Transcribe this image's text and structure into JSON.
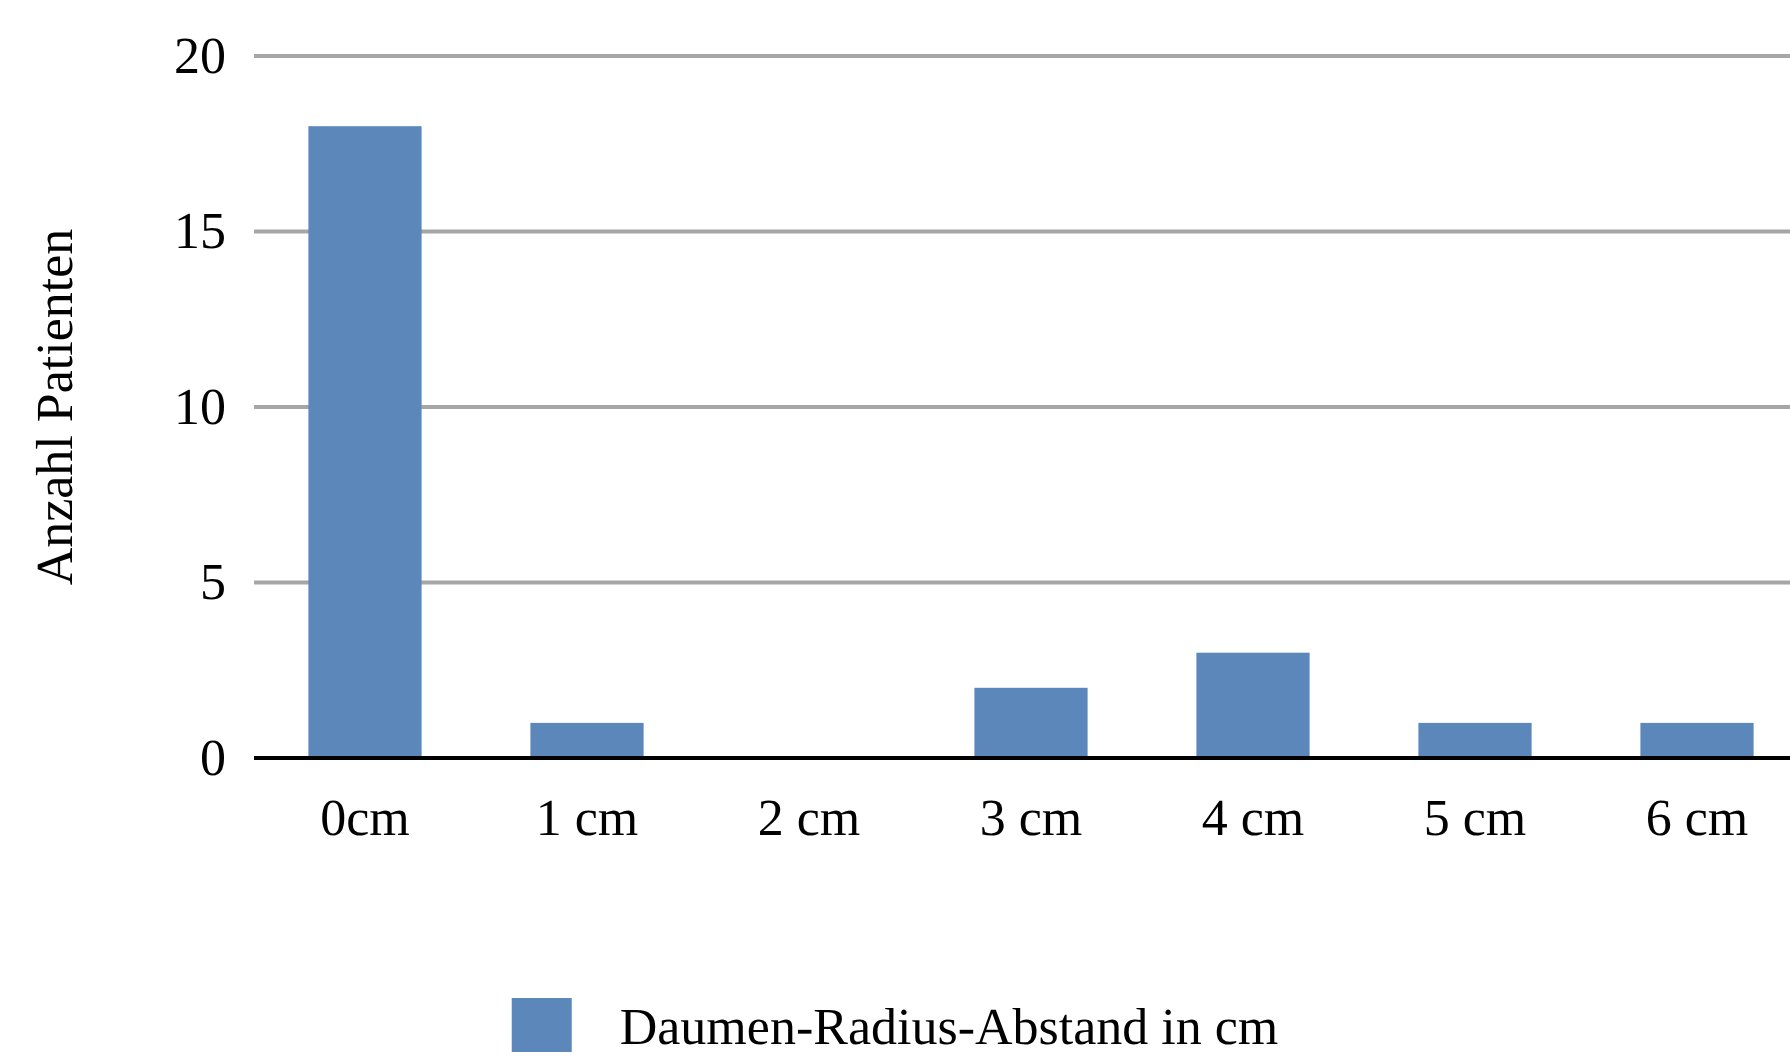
{
  "chart_data": {
    "type": "bar",
    "ylabel": "Anzahl Patienten",
    "categories": [
      "0cm",
      "1 cm",
      "2 cm",
      "3 cm",
      "4 cm",
      "5 cm",
      "6 cm"
    ],
    "series": [
      {
        "name": "Daumen-Radius-Abstand in cm",
        "color": "#5b87bb",
        "values": [
          18,
          1,
          0,
          2,
          3,
          1,
          1
        ]
      }
    ],
    "ylim": [
      0,
      20
    ],
    "yticks": [
      0,
      5,
      10,
      15,
      20
    ],
    "grid": "y",
    "legend": "bottom"
  }
}
